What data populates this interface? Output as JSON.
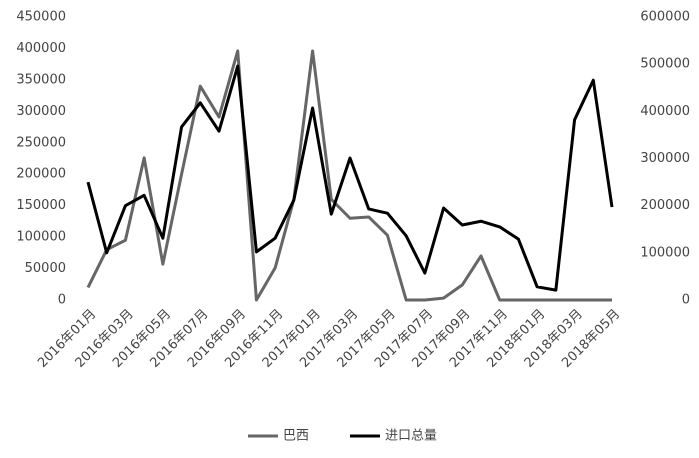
{
  "chart_data": {
    "type": "line",
    "categories": [
      "2016年01月",
      null,
      "2016年03月",
      null,
      "2016年05月",
      null,
      "2016年07月",
      null,
      "2016年09月",
      null,
      "2016年11月",
      null,
      "2017年01月",
      null,
      "2017年03月",
      null,
      "2017年05月",
      null,
      "2017年07月",
      null,
      "2017年09月",
      null,
      "2017年11月",
      null,
      "2018年01月",
      null,
      "2018年03月",
      null,
      "2018年05月"
    ],
    "series": [
      {
        "name": "巴西",
        "color": "#666666",
        "values": [
          20000,
          80000,
          95000,
          226000,
          57000,
          200000,
          340000,
          291000,
          396000,
          0,
          51000,
          160000,
          396000,
          160000,
          130000,
          132000,
          103000,
          0,
          0,
          3000,
          24000,
          70000,
          0,
          0,
          0,
          0,
          0,
          0,
          0
        ]
      },
      {
        "name": "进口总量",
        "color": "#000000",
        "axis": "y2",
        "values": [
          250000,
          100000,
          200000,
          222000,
          131000,
          367000,
          418000,
          358000,
          496000,
          102000,
          131000,
          212000,
          407000,
          182000,
          301000,
          193000,
          184000,
          136000,
          57000,
          195000,
          159000,
          167000,
          155000,
          129000,
          28000,
          21000,
          382000,
          466000,
          197000
        ]
      }
    ],
    "ylim": [
      0,
      450000
    ],
    "yticks": [
      0,
      50000,
      100000,
      150000,
      200000,
      250000,
      300000,
      350000,
      400000,
      450000
    ],
    "y2lim": [
      0,
      600000
    ],
    "y2ticks": [
      0,
      100000,
      200000,
      300000,
      400000,
      500000,
      600000
    ],
    "grid": false,
    "legend": "bottom"
  }
}
